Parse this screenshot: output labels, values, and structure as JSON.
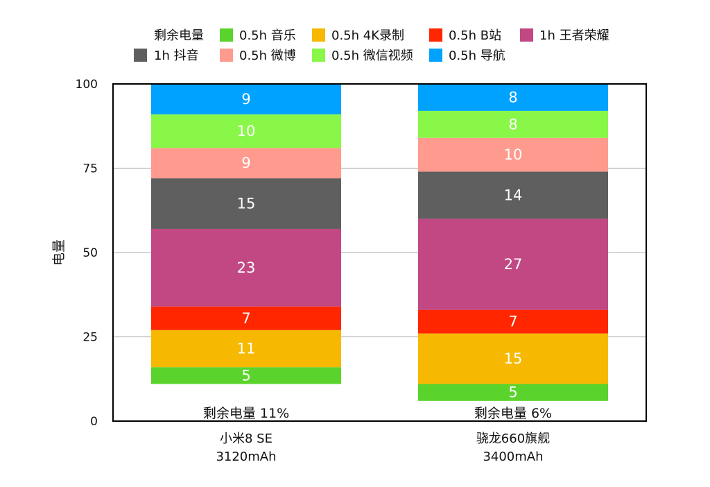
{
  "chart_data": {
    "type": "bar",
    "stacked": true,
    "ylabel": "电量",
    "ylim": [
      0,
      100
    ],
    "yticks": [
      0,
      25,
      50,
      75,
      100
    ],
    "grid": true,
    "legend_position": "top",
    "categories": [
      {
        "name": "小米8 SE",
        "capacity": "3120mAh",
        "remaining_label": "剩余电量 11%"
      },
      {
        "name": "骁龙660旗舰",
        "capacity": "3400mAh",
        "remaining_label": "剩余电量 6%"
      }
    ],
    "series": [
      {
        "name": "剩余电量",
        "color": "#ffffff",
        "values": [
          11,
          6
        ],
        "show_label": false
      },
      {
        "name": "0.5h 音乐",
        "color": "#5ad42c",
        "values": [
          5,
          5
        ]
      },
      {
        "name": "0.5h 4K录制",
        "color": "#f6b800",
        "values": [
          11,
          15
        ]
      },
      {
        "name": "0.5h B站",
        "color": "#ff2600",
        "values": [
          7,
          7
        ]
      },
      {
        "name": "1h 王者荣耀",
        "color": "#c24884",
        "values": [
          23,
          27
        ]
      },
      {
        "name": "1h 抖音",
        "color": "#5f5f5f",
        "values": [
          15,
          14
        ]
      },
      {
        "name": "0.5h 微博",
        "color": "#ff9a8e",
        "values": [
          9,
          10
        ]
      },
      {
        "name": "0.5h 微信视频",
        "color": "#88f748",
        "values": [
          10,
          8
        ]
      },
      {
        "name": "0.5h 导航",
        "color": "#00a2ff",
        "values": [
          9,
          8
        ]
      }
    ]
  }
}
